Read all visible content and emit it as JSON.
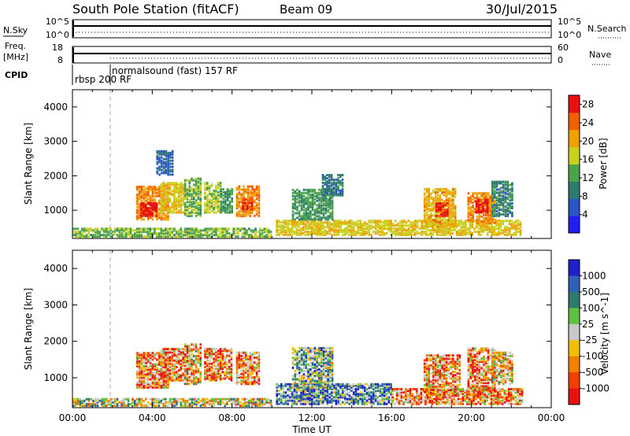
{
  "header": {
    "station": "South Pole Station (fitACF)",
    "beam": "Beam 09",
    "date": "30/Jul/2015"
  },
  "param_panels": {
    "nsky_label": "N.Sky",
    "nsky_ticks": [
      "10^5",
      "10^0"
    ],
    "nsearch_label": "N.Search",
    "nsearch_ticks": [
      "10^5",
      "10^0"
    ],
    "freq_label_1": "Freq.",
    "freq_label_2": "[MHz]",
    "freq_ticks": [
      "18",
      "8"
    ],
    "nave_label": "Nave",
    "nave_ticks": [
      "60",
      "0"
    ],
    "cpid_label": "CPID",
    "cpid_1": "rbsp 200 RF",
    "cpid_2": "normalsound (fast) 157 RF"
  },
  "chart_data": [
    {
      "type": "heatmap",
      "title": "",
      "xlabel": "Time UT",
      "ylabel": "Slant Range [km]",
      "x_ticks": [
        "00:00",
        "04:00",
        "08:00",
        "12:00",
        "16:00",
        "20:00",
        "00:00"
      ],
      "x_range_hours": [
        0,
        24
      ],
      "ylim": [
        180,
        4500
      ],
      "y_ticks": [
        1000,
        2000,
        3000,
        4000
      ],
      "colorbar": {
        "label": "Power [dB]",
        "ticks": [
          "4",
          "8",
          "12",
          "16",
          "20",
          "24",
          "28"
        ],
        "range": [
          0,
          30
        ],
        "colors": [
          "#1f1ff0",
          "#2a56c8",
          "#2e7a6e",
          "#4aa24a",
          "#c8d020",
          "#f0a000",
          "#f06000",
          "#e81010"
        ]
      },
      "mode_change_hour": 2.0,
      "patches": [
        {
          "t0": 3.2,
          "t1": 4.8,
          "r0": 700,
          "r1": 1650,
          "level": 22
        },
        {
          "t0": 3.4,
          "t1": 4.2,
          "r0": 800,
          "r1": 1200,
          "level": 28
        },
        {
          "t0": 4.4,
          "t1": 5.6,
          "r0": 900,
          "r1": 1800,
          "level": 18
        },
        {
          "t0": 5.6,
          "t1": 6.4,
          "r0": 800,
          "r1": 1900,
          "level": 14
        },
        {
          "t0": 6.6,
          "t1": 7.4,
          "r0": 900,
          "r1": 1800,
          "level": 16
        },
        {
          "t0": 7.4,
          "t1": 8.0,
          "r0": 900,
          "r1": 1600,
          "level": 12
        },
        {
          "t0": 8.2,
          "t1": 9.4,
          "r0": 800,
          "r1": 1700,
          "level": 22
        },
        {
          "t0": 8.5,
          "t1": 9.0,
          "r0": 1000,
          "r1": 1300,
          "level": 27
        },
        {
          "t0": 10.2,
          "t1": 22.5,
          "r0": 250,
          "r1": 700,
          "level": 18
        },
        {
          "t0": 11.0,
          "t1": 13.0,
          "r0": 700,
          "r1": 1600,
          "level": 12
        },
        {
          "t0": 12.5,
          "t1": 13.5,
          "r0": 1400,
          "r1": 2000,
          "level": 9
        },
        {
          "t0": 17.6,
          "t1": 19.2,
          "r0": 500,
          "r1": 1600,
          "level": 20
        },
        {
          "t0": 18.2,
          "t1": 18.8,
          "r0": 800,
          "r1": 1200,
          "level": 27
        },
        {
          "t0": 19.8,
          "t1": 21.2,
          "r0": 600,
          "r1": 1500,
          "level": 22
        },
        {
          "t0": 20.2,
          "t1": 20.8,
          "r0": 900,
          "r1": 1300,
          "level": 28
        },
        {
          "t0": 21.0,
          "t1": 22.0,
          "r0": 800,
          "r1": 1800,
          "level": 10
        },
        {
          "t0": 4.2,
          "t1": 5.0,
          "r0": 2000,
          "r1": 2700,
          "level": 7
        },
        {
          "t0": 0.0,
          "t1": 10.0,
          "r0": 200,
          "r1": 450,
          "level": 14
        }
      ]
    },
    {
      "type": "heatmap",
      "title": "",
      "xlabel": "Time UT",
      "ylabel": "Slant Range [km]",
      "x_ticks": [
        "00:00",
        "04:00",
        "08:00",
        "12:00",
        "16:00",
        "20:00",
        "00:00"
      ],
      "x_range_hours": [
        0,
        24
      ],
      "ylim": [
        180,
        4500
      ],
      "y_ticks": [
        1000,
        2000,
        3000,
        4000
      ],
      "colorbar": {
        "label": "Velocity [m s^-1]",
        "ticks": [
          "1000",
          "500",
          "100",
          "25",
          "-25",
          "-100",
          "-500",
          "-1000"
        ],
        "colors": [
          "#2020c8",
          "#3060b8",
          "#2e7a6e",
          "#60c040",
          "#c8c8c8",
          "#f0c000",
          "#f08000",
          "#f04000",
          "#e81010"
        ]
      },
      "mode_change_hour": 2.0,
      "patches": [
        {
          "t0": 3.2,
          "t1": 4.8,
          "r0": 700,
          "r1": 1650,
          "level": 6
        },
        {
          "t0": 4.4,
          "t1": 5.6,
          "r0": 900,
          "r1": 1800,
          "level": 6
        },
        {
          "t0": 5.6,
          "t1": 6.4,
          "r0": 800,
          "r1": 1900,
          "level": 5
        },
        {
          "t0": 6.6,
          "t1": 8.0,
          "r0": 900,
          "r1": 1800,
          "level": 6
        },
        {
          "t0": 8.2,
          "t1": 9.4,
          "r0": 800,
          "r1": 1700,
          "level": 6
        },
        {
          "t0": 10.2,
          "t1": 16.0,
          "r0": 250,
          "r1": 800,
          "level": 2
        },
        {
          "t0": 11.0,
          "t1": 13.0,
          "r0": 700,
          "r1": 1800,
          "level": 3
        },
        {
          "t0": 16.0,
          "t1": 22.5,
          "r0": 250,
          "r1": 700,
          "level": 6
        },
        {
          "t0": 17.6,
          "t1": 19.4,
          "r0": 500,
          "r1": 1600,
          "level": 6
        },
        {
          "t0": 19.8,
          "t1": 21.2,
          "r0": 600,
          "r1": 1800,
          "level": 6
        },
        {
          "t0": 21.0,
          "t1": 22.0,
          "r0": 800,
          "r1": 1700,
          "level": 5
        },
        {
          "t0": 0.0,
          "t1": 10.0,
          "r0": 200,
          "r1": 400,
          "level": 4
        }
      ]
    }
  ]
}
